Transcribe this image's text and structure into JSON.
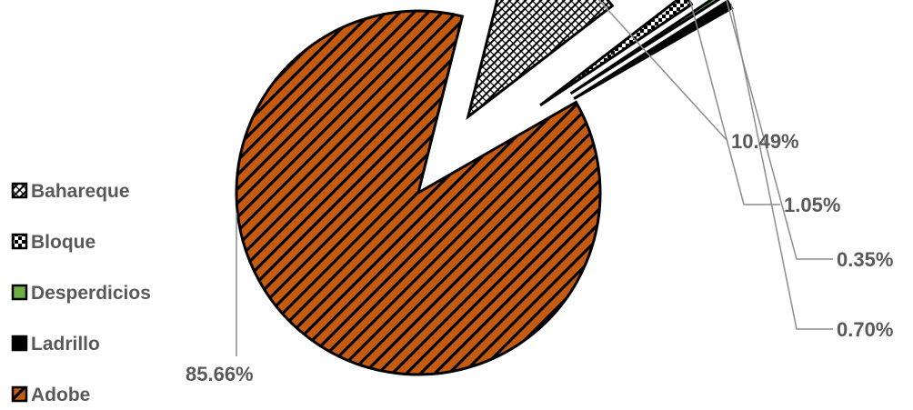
{
  "chart_data": {
    "type": "pie",
    "title": "",
    "legend_placement": "left",
    "categories": [
      "Bahareque",
      "Bloque",
      "Desperdicios",
      "Ladrillo",
      "Adobe"
    ],
    "series": [
      {
        "values": [
          10.49,
          1.05,
          0.35,
          0.7,
          85.66
        ],
        "data_labels": [
          "10.49%",
          "1.05%",
          "0.35%",
          "0.70%",
          "85.66%"
        ]
      }
    ],
    "colors": {
      "Bahareque": "#ffffff",
      "Bloque": "#ffffff",
      "Desperdicios": "#70ad47",
      "Ladrillo": "#000000",
      "Adobe": "#c55a11"
    },
    "patterns": {
      "Bahareque": "diagonal-crosshatch",
      "Bloque": "checker",
      "Desperdicios": "solid",
      "Ladrillo": "solid",
      "Adobe": "wide-diagonal-stripes"
    },
    "exploded": true
  }
}
